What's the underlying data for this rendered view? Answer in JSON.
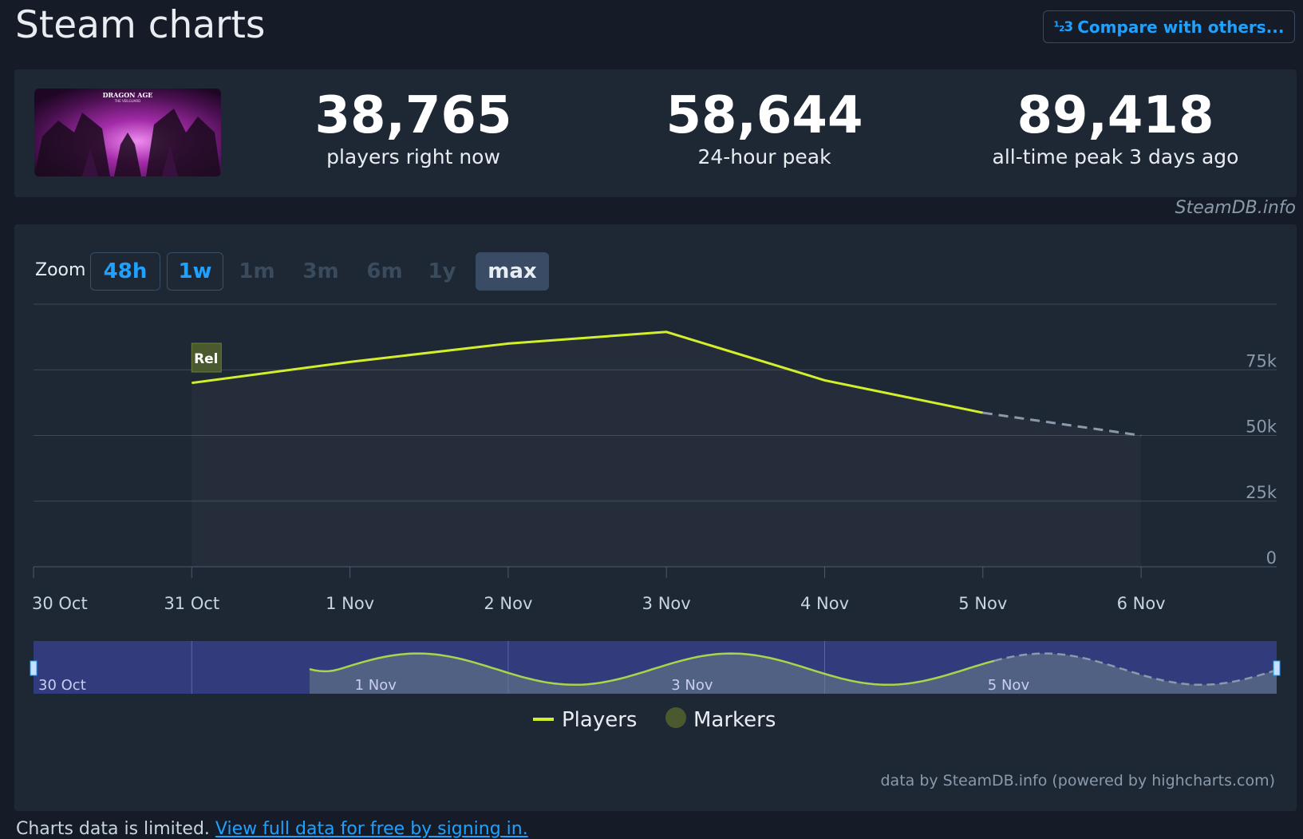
{
  "page": {
    "title": "Steam charts",
    "compare_label": "Compare with others...",
    "compare_icon": "fraction-icon",
    "credit": "SteamDB.info"
  },
  "stats": [
    {
      "value": "38,765",
      "label": "players right now"
    },
    {
      "value": "58,644",
      "label": "24-hour peak"
    },
    {
      "value": "89,418",
      "label": "all-time peak 3 days ago"
    }
  ],
  "game_image": {
    "text_line1": "DRAGON AGE",
    "text_line2": "THE VEILGUARD"
  },
  "zoom": {
    "label": "Zoom",
    "options": [
      {
        "label": "48h",
        "state": "on"
      },
      {
        "label": "1w",
        "state": "on"
      },
      {
        "label": "1m",
        "state": "off"
      },
      {
        "label": "3m",
        "state": "off"
      },
      {
        "label": "6m",
        "state": "off"
      },
      {
        "label": "1y",
        "state": "off"
      },
      {
        "label": "max",
        "state": "sel"
      }
    ]
  },
  "chart_data": {
    "type": "line",
    "series": [
      {
        "name": "Players",
        "color": "#d3ef2b",
        "points": [
          [
            "31 Oct",
            70000
          ],
          [
            "1 Nov",
            78000
          ],
          [
            "2 Nov",
            85000
          ],
          [
            "3 Nov",
            89418
          ],
          [
            "4 Nov",
            71000
          ],
          [
            "5 Nov",
            58644
          ]
        ]
      },
      {
        "name": "Players (incomplete)",
        "dashed": true,
        "color": "#8a9aab",
        "points": [
          [
            "5 Nov",
            58644
          ],
          [
            "6 Nov",
            50000
          ]
        ]
      }
    ],
    "x_ticks": [
      "30 Oct",
      "31 Oct",
      "1 Nov",
      "2 Nov",
      "3 Nov",
      "4 Nov",
      "5 Nov",
      "6 Nov"
    ],
    "y_ticks": [
      "0",
      "25k",
      "50k",
      "75k"
    ],
    "ylim": [
      0,
      100000
    ],
    "marker": {
      "label": "Rel",
      "at": "31 Oct"
    },
    "navigator_labels": [
      "30 Oct",
      "1 Nov",
      "3 Nov",
      "5 Nov"
    ],
    "legend": [
      {
        "label": "Players",
        "type": "line",
        "color": "#d3ef2b"
      },
      {
        "label": "Markers",
        "type": "dot",
        "color": "#4a5a2e"
      }
    ],
    "legend_position": "bottom"
  },
  "footer": {
    "credit": "data by SteamDB.info (powered by highcharts.com)",
    "note": "Charts data is limited.",
    "note_link": "View full data for free by signing in."
  }
}
